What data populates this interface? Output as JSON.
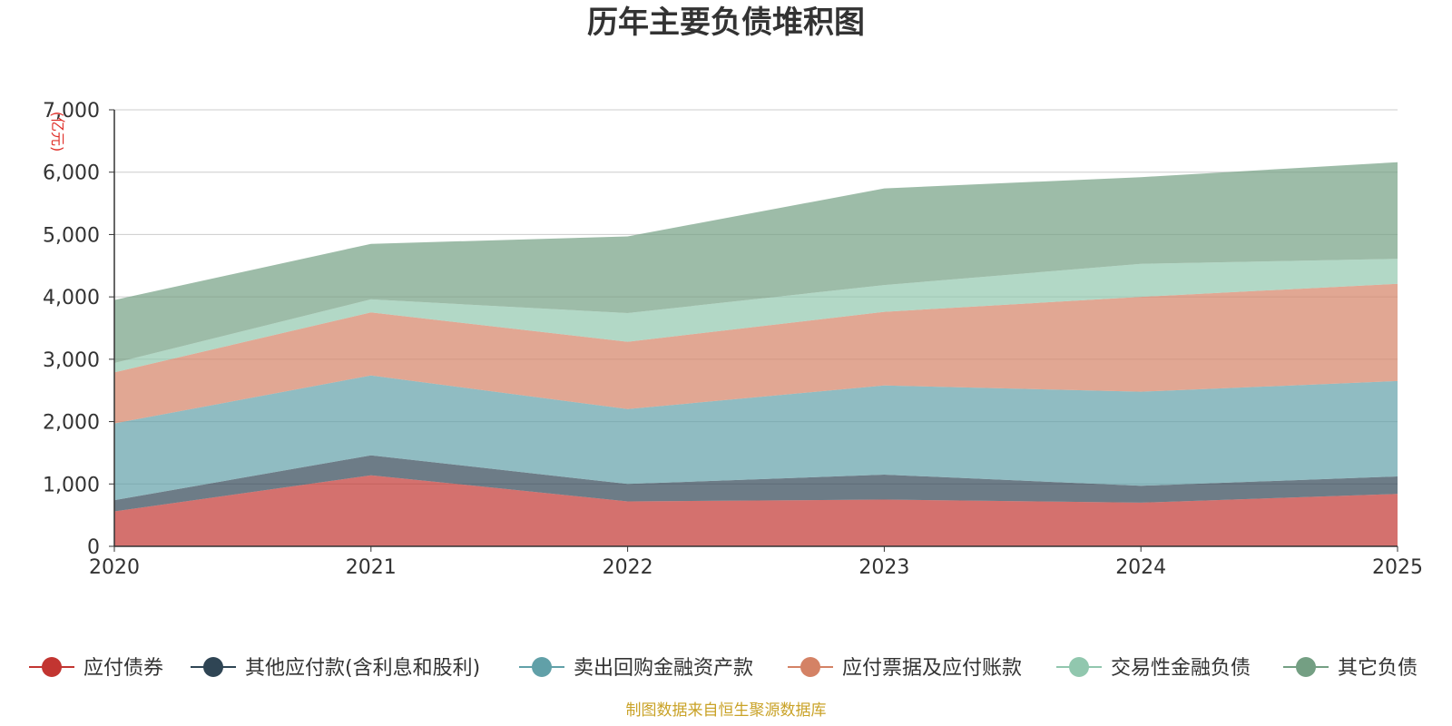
{
  "chart_data": {
    "type": "area",
    "stacked": true,
    "title": "历年主要负债堆积图",
    "ylabel": "(亿元)",
    "xlabel": "",
    "x": [
      "2020",
      "2021",
      "2022",
      "2023",
      "2024",
      "2025"
    ],
    "ylim": [
      0,
      7000
    ],
    "yticks": [
      "0",
      "1,000",
      "2,000",
      "3,000",
      "4,000",
      "5,000",
      "6,000",
      "7,000"
    ],
    "grid": true,
    "legend_position": "bottom",
    "series": [
      {
        "name": "应付债券",
        "color": "#c23531",
        "values": [
          560,
          1140,
          720,
          750,
          700,
          840
        ]
      },
      {
        "name": "其他应付款(含利息和股利)",
        "color": "#2f4554",
        "values": [
          180,
          320,
          280,
          400,
          270,
          280
        ]
      },
      {
        "name": "卖出回购金融资产款",
        "color": "#61a0a8",
        "values": [
          1230,
          1280,
          1200,
          1430,
          1510,
          1530
        ]
      },
      {
        "name": "应付票据及应付账款",
        "color": "#d48265",
        "values": [
          820,
          1010,
          1080,
          1180,
          1520,
          1560
        ]
      },
      {
        "name": "交易性金融负债",
        "color": "#91c7ae",
        "values": [
          150,
          210,
          460,
          430,
          530,
          400
        ]
      },
      {
        "name": "其它负债",
        "color": "#749f83",
        "values": [
          1010,
          890,
          1230,
          1550,
          1390,
          1550
        ]
      }
    ],
    "source": "制图数据来自恒生聚源数据库"
  }
}
